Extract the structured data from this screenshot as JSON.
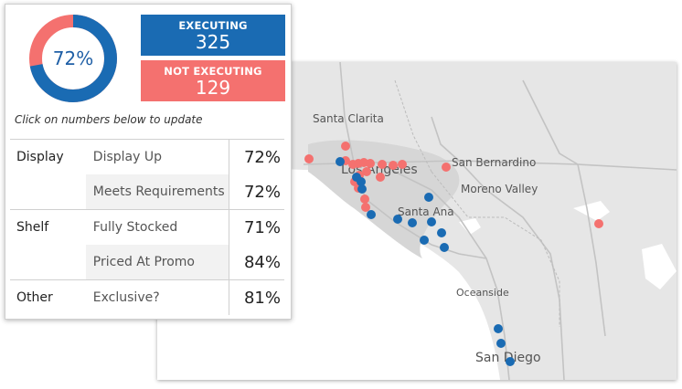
{
  "summary": {
    "donut_percent": 0.72,
    "donut_label": "72%",
    "executing_label": "EXECUTING",
    "executing_count": "325",
    "not_executing_label": "NOT EXECUTING",
    "not_executing_count": "129",
    "hint": "Click on numbers below to update"
  },
  "colors": {
    "executing": "#1a6bb3",
    "not_executing": "#f4716f",
    "donut_remainder": "#f4716f"
  },
  "metrics": [
    {
      "group": "Display",
      "metric": "Display Up",
      "value": "72%"
    },
    {
      "group": "",
      "metric": "Meets Requirements",
      "value": "72%"
    },
    {
      "group": "Shelf",
      "metric": "Fully Stocked",
      "value": "71%"
    },
    {
      "group": "",
      "metric": "Priced At Promo",
      "value": "84%"
    },
    {
      "group": "Other",
      "metric": "Exclusive?",
      "value": "81%"
    }
  ],
  "map": {
    "cities": [
      "Santa Clarita",
      "Los Angeles",
      "San Bernardino",
      "Moreno Valley",
      "Santa Ana",
      "Oceanside",
      "San Diego"
    ]
  }
}
